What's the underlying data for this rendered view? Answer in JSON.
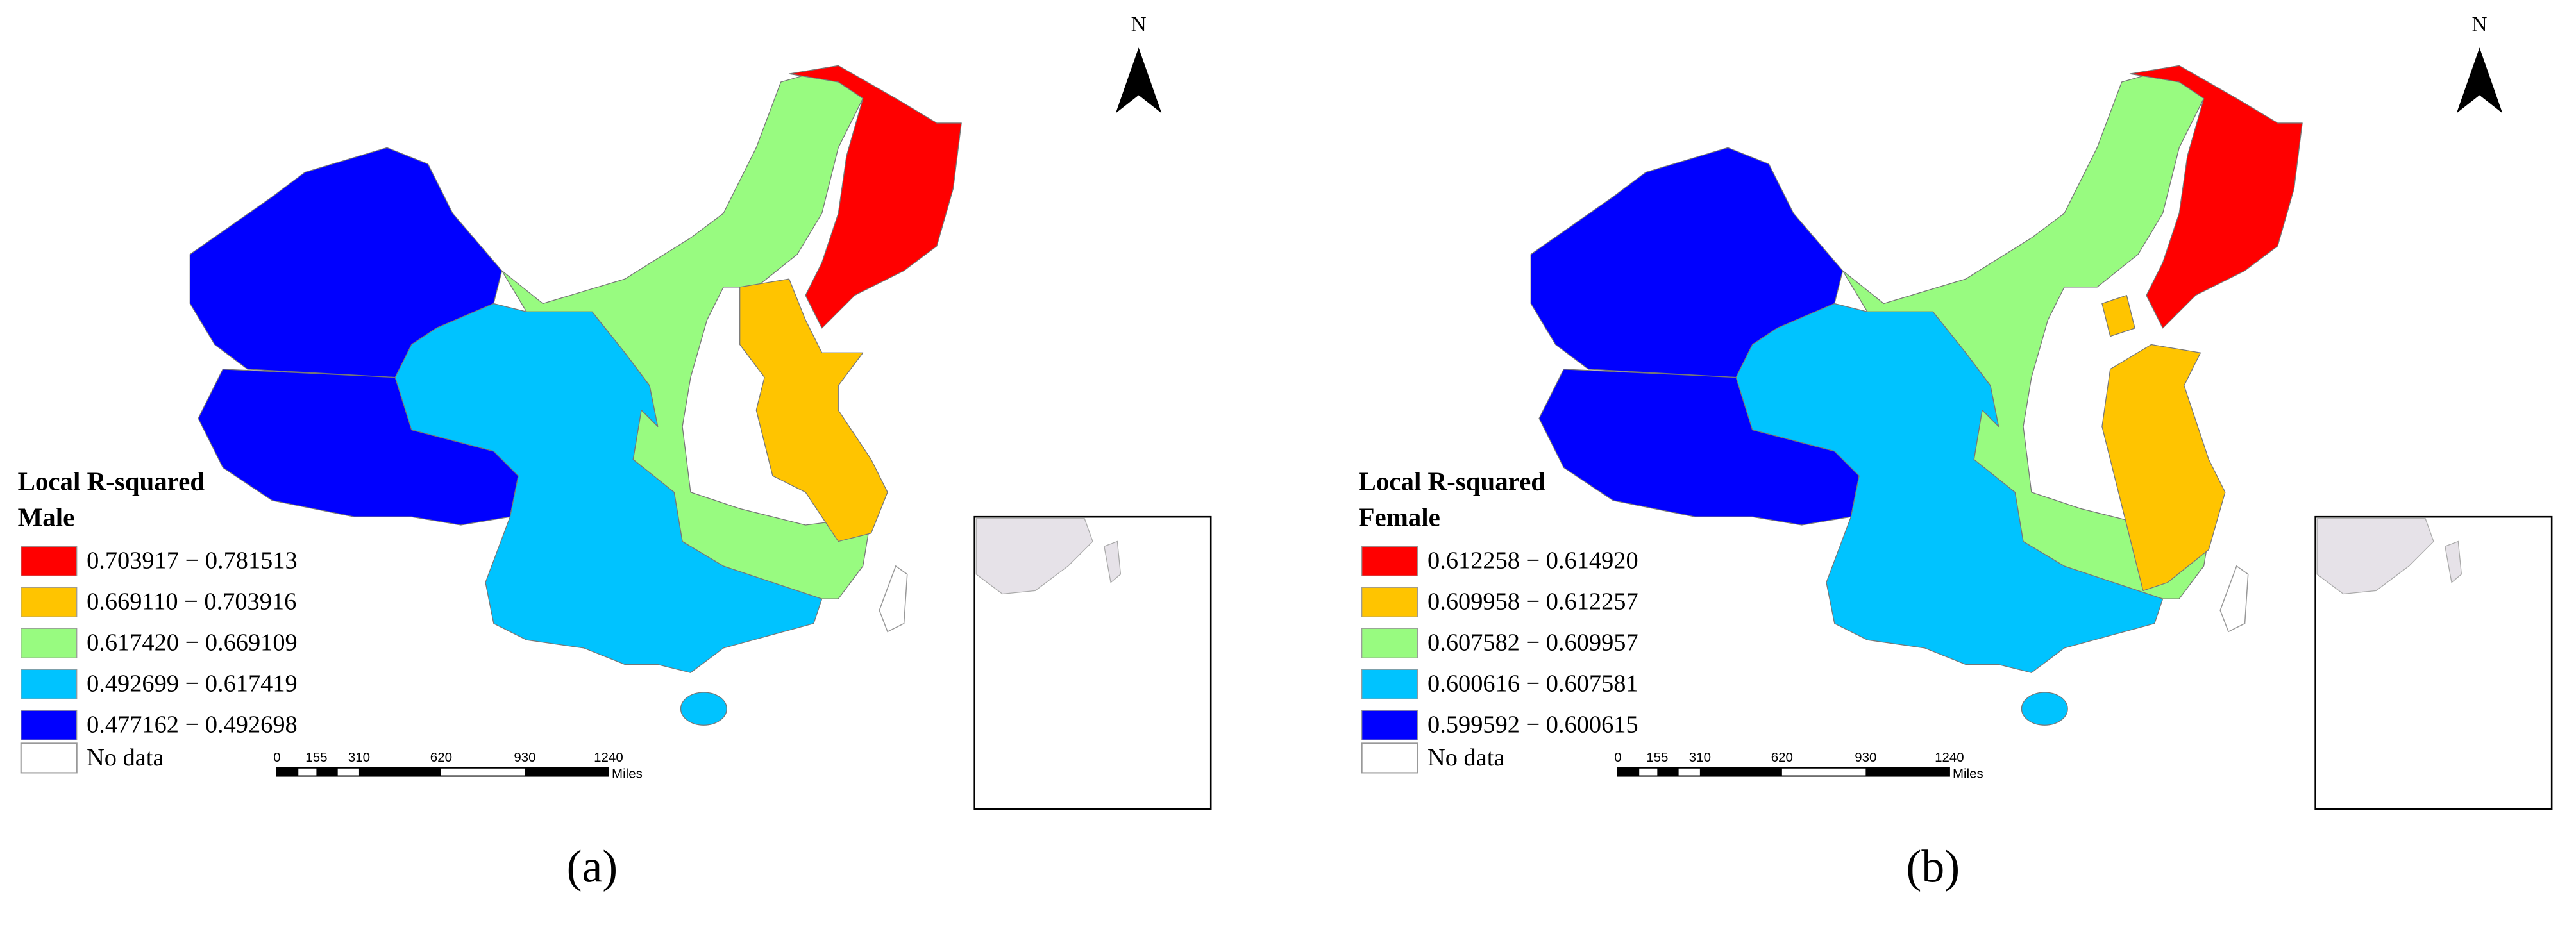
{
  "panels": [
    {
      "caption": "(a)",
      "north": "N",
      "legend": {
        "title": "Local R-squared",
        "subtitle": "Male",
        "classes": [
          {
            "label": "0.703917 − 0.781513",
            "color": "#ff0000"
          },
          {
            "label": "0.669110 − 0.703916",
            "color": "#ffc400"
          },
          {
            "label": "0.617420 − 0.669109",
            "color": "#98fb80"
          },
          {
            "label": "0.492699 − 0.617419",
            "color": "#00c3ff"
          },
          {
            "label": "0.477162 − 0.492698",
            "color": "#0000ff"
          }
        ],
        "no_data": "No data"
      },
      "scale_bar": {
        "ticks": [
          "0",
          "155",
          "310",
          "620",
          "930",
          "1240"
        ],
        "unit": "Miles"
      }
    },
    {
      "caption": "(b)",
      "north": "N",
      "legend": {
        "title": "Local R-squared",
        "subtitle": "Female",
        "classes": [
          {
            "label": "0.612258 − 0.614920",
            "color": "#ff0000"
          },
          {
            "label": "0.609958 − 0.612257",
            "color": "#ffc400"
          },
          {
            "label": "0.607582 − 0.609957",
            "color": "#98fb80"
          },
          {
            "label": "0.600616 − 0.607581",
            "color": "#00c3ff"
          },
          {
            "label": "0.599592 − 0.600615",
            "color": "#0000ff"
          }
        ],
        "no_data": "No data"
      },
      "scale_bar": {
        "ticks": [
          "0",
          "155",
          "310",
          "620",
          "930",
          "1240"
        ],
        "unit": "Miles"
      }
    }
  ]
}
